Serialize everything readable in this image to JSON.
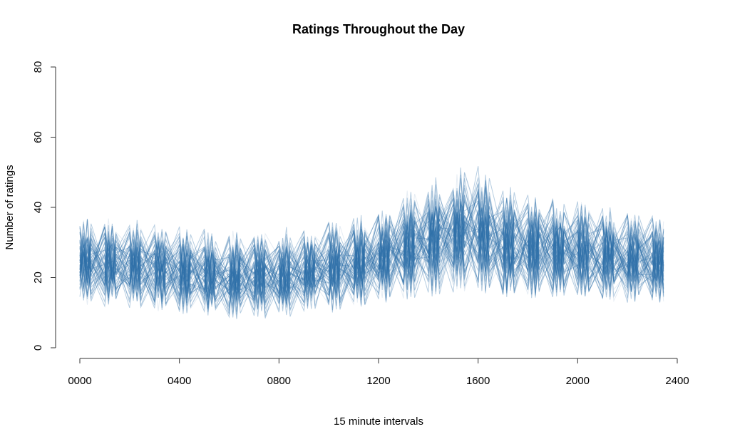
{
  "chart_data": {
    "type": "line",
    "title": "Ratings Throughout the Day",
    "xlabel": "15 minute intervals",
    "ylabel": "Number of ratings",
    "xlim": [
      0,
      2400
    ],
    "ylim": [
      0,
      80
    ],
    "x_ticks": [
      {
        "value": 0,
        "label": "0000"
      },
      {
        "value": 400,
        "label": "0400"
      },
      {
        "value": 800,
        "label": "0800"
      },
      {
        "value": 1200,
        "label": "1200"
      },
      {
        "value": 1600,
        "label": "1600"
      },
      {
        "value": 2000,
        "label": "2000"
      },
      {
        "value": 2400,
        "label": "2400"
      }
    ],
    "y_ticks": [
      0,
      20,
      40,
      60,
      80
    ],
    "interval_minutes": 15,
    "x_start": 0,
    "x_end": 2375,
    "line_color": "#2F6FA8",
    "grid": false,
    "series_count": 60,
    "mean_profile": {
      "x": [
        0,
        200,
        400,
        600,
        800,
        1000,
        1200,
        1400,
        1500,
        1600,
        1700,
        1800,
        2000,
        2200,
        2375
      ],
      "y": [
        25,
        24,
        22,
        20.5,
        21,
        23,
        26,
        31,
        33,
        33.5,
        30,
        29,
        28,
        26,
        24.5
      ]
    },
    "amplitude_profile": {
      "x": [
        0,
        400,
        800,
        1200,
        1400,
        1600,
        1800,
        2000,
        2375
      ],
      "y": [
        9,
        9,
        9,
        10,
        12,
        13,
        11,
        10,
        9
      ]
    }
  }
}
